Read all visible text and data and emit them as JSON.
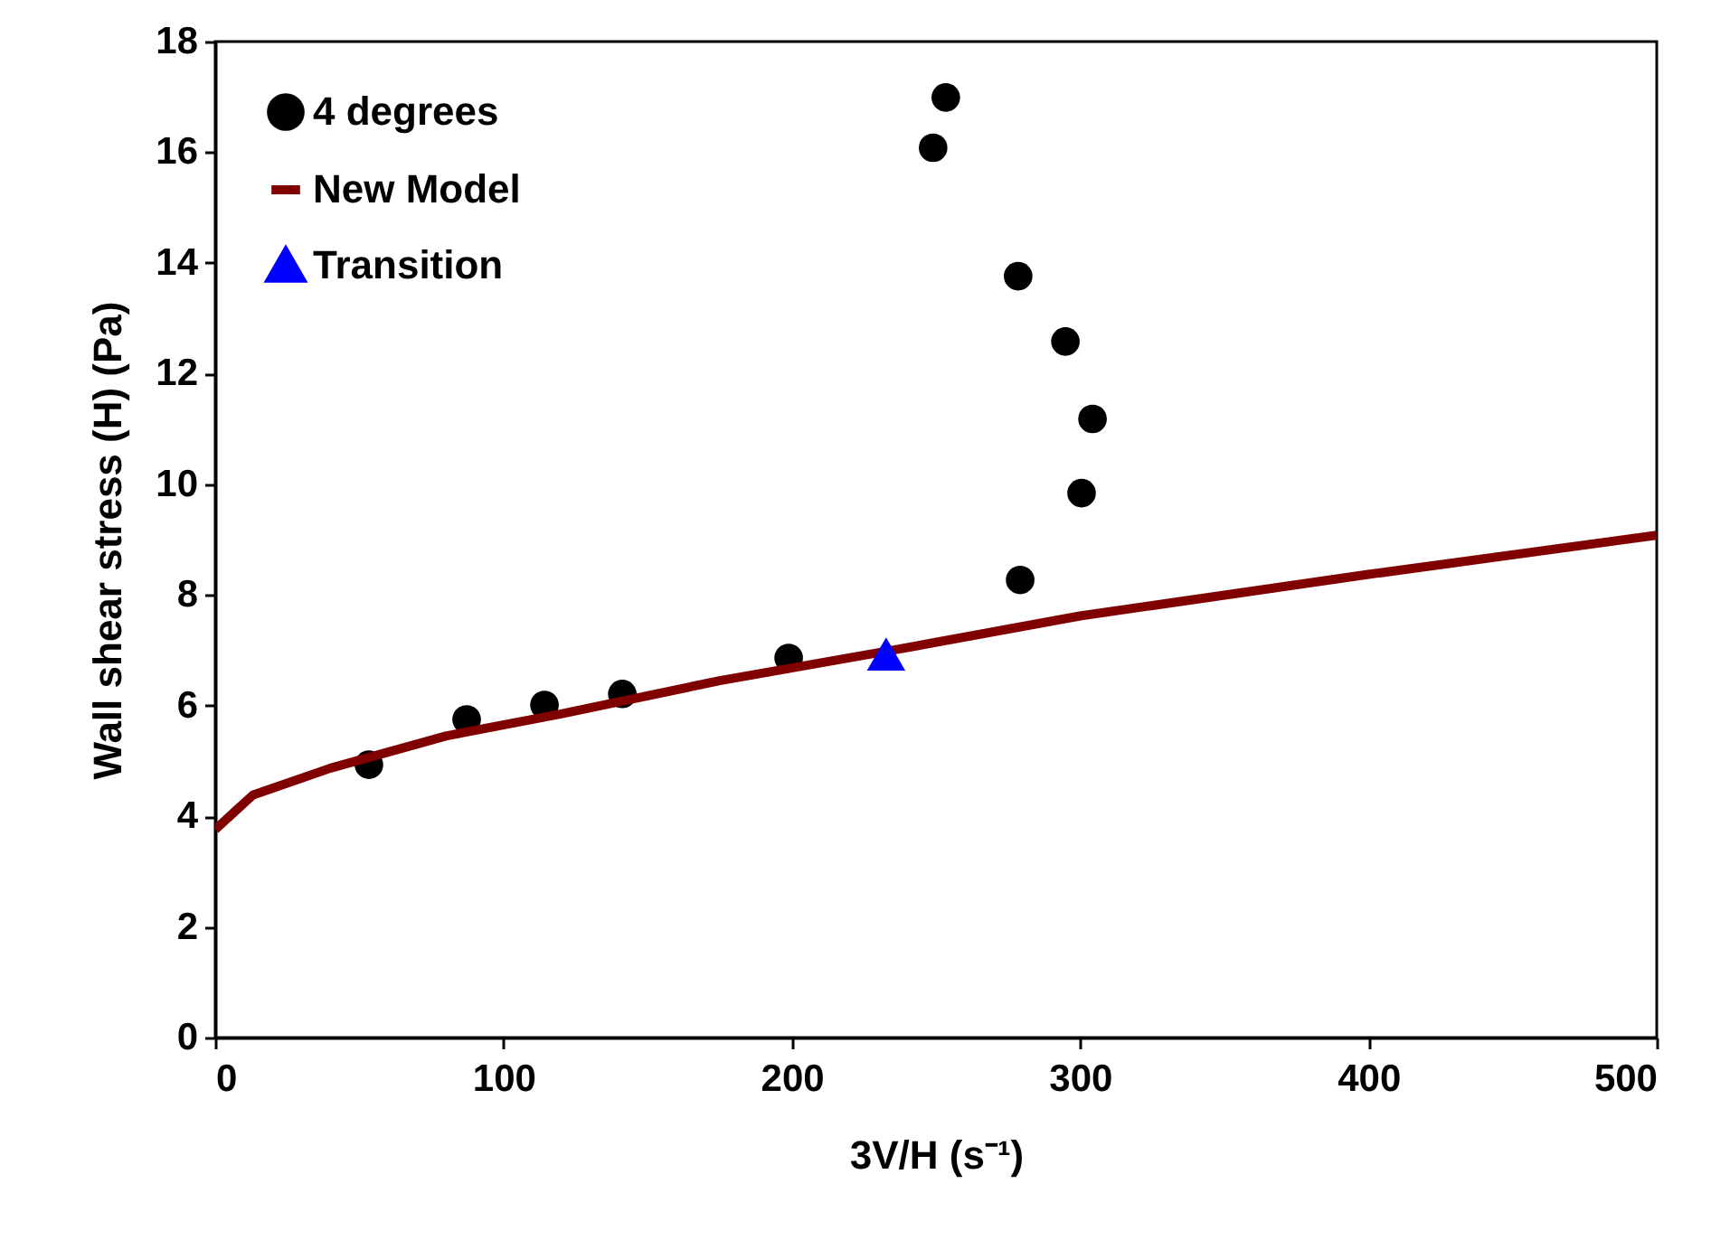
{
  "chart_data": {
    "type": "scatter",
    "xlabel": "3V/H (s⁻¹)",
    "ylabel": "Wall shear stress (H) (Pa)",
    "xlim": [
      0,
      500
    ],
    "xticks": [
      0,
      100,
      200,
      300,
      400,
      500
    ],
    "ylim": [
      0,
      18
    ],
    "yticks": [
      0,
      2,
      4,
      6,
      8,
      10,
      12,
      14,
      16,
      18
    ],
    "grid": false,
    "legend": "top left",
    "series": [
      {
        "name": "4 degrees",
        "marker": "circle",
        "color": "#000000",
        "x": [
          53.3,
          87.2,
          114.2,
          141.2,
          198.9,
          249,
          253.4,
          278.5,
          294.9,
          304.3,
          300.5,
          279.2
        ],
        "values": [
          4.93,
          5.75,
          6.01,
          6.21,
          6.86,
          16.08,
          16.99,
          13.76,
          12.58,
          11.18,
          9.84,
          8.27
        ]
      },
      {
        "name": "New Model",
        "type": "line",
        "color": "#800000",
        "x": [
          0,
          13,
          40,
          80,
          120,
          175,
          235,
          300,
          400,
          500
        ],
        "values": [
          3.76,
          4.38,
          4.87,
          5.45,
          5.85,
          6.45,
          7.0,
          7.62,
          8.37,
          9.08
        ]
      },
      {
        "name": "Transition",
        "type": "scatter",
        "marker": "triangle",
        "color": "#0000ff",
        "x": [
          232.7
        ],
        "values": [
          6.93
        ]
      }
    ]
  }
}
